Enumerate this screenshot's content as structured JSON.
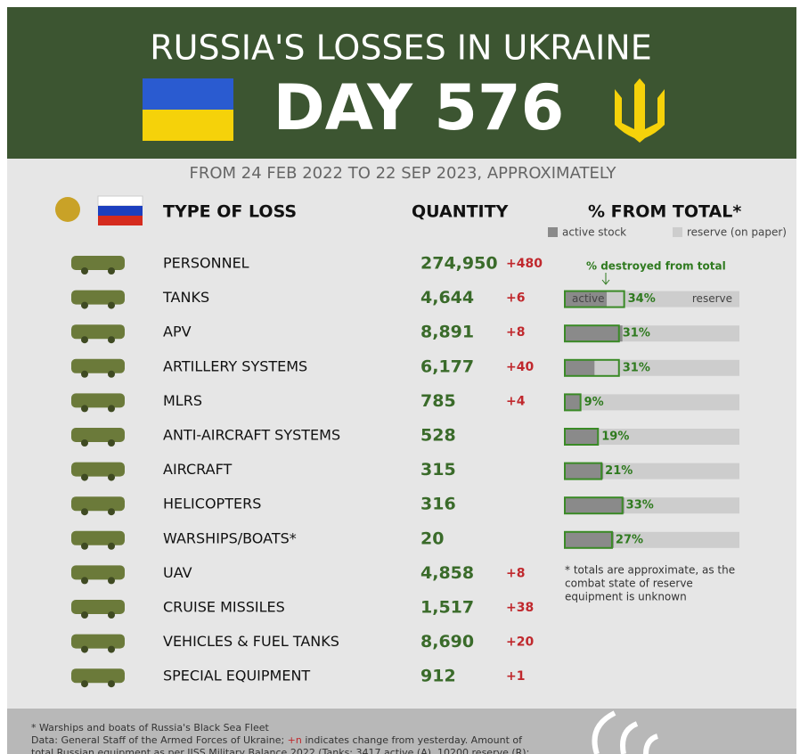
{
  "header": {
    "title": "RUSSIA'S LOSSES IN UKRAINE",
    "day": "DAY 576",
    "subtitle": "FROM 24 FEB 2022 TO 22 SEP 2023, APPROXIMATELY"
  },
  "columns": {
    "type": "TYPE OF LOSS",
    "quantity": "QUANTITY",
    "percent": "% FROM TOTAL*"
  },
  "legend": {
    "active_stock": "active stock",
    "reserve": "reserve (on paper)",
    "destroyed": "% destroyed from total",
    "bar_active": "active",
    "bar_reserve": "reserve"
  },
  "rows": [
    {
      "name": "PERSONNEL",
      "quantity": "274,950",
      "change": "+480"
    },
    {
      "name": "TANKS",
      "quantity": "4,644",
      "change": "+6",
      "percent": {
        "value": 34,
        "label": "34%"
      },
      "active_share": 24
    },
    {
      "name": "APV",
      "quantity": "8,891",
      "change": "+8",
      "percent": {
        "value": 31,
        "label": "31%"
      },
      "active_share": 33
    },
    {
      "name": "ARTILLERY SYSTEMS",
      "quantity": "6,177",
      "change": "+40",
      "percent": {
        "value": 31,
        "label": "31%"
      },
      "active_share": 17
    },
    {
      "name": "MLRS",
      "quantity": "785",
      "change": "+4",
      "percent": {
        "value": 9,
        "label": "9%"
      },
      "active_share": 9
    },
    {
      "name": "ANTI-AIRCRAFT SYSTEMS",
      "quantity": "528",
      "percent": {
        "value": 19,
        "label": "19%"
      },
      "active_share": 19
    },
    {
      "name": "AIRCRAFT",
      "quantity": "315",
      "percent": {
        "value": 21,
        "label": "21%"
      },
      "active_share": 22
    },
    {
      "name": "HELICOPTERS",
      "quantity": "316",
      "percent": {
        "value": 33,
        "label": "33%"
      },
      "active_share": 34
    },
    {
      "name": "WARSHIPS/BOATS*",
      "quantity": "20",
      "percent": {
        "value": 27,
        "label": "27%"
      },
      "active_share": 28
    },
    {
      "name": "UAV",
      "quantity": "4,858",
      "change": "+8"
    },
    {
      "name": "CRUISE MISSILES",
      "quantity": "1,517",
      "change": "+38"
    },
    {
      "name": "VEHICLES & FUEL TANKS",
      "quantity": "8,690",
      "change": "+20"
    },
    {
      "name": "SPECIAL EQUIPMENT",
      "quantity": "912",
      "change": "+1"
    }
  ],
  "note": [
    "* totals are approximate, as the",
    "combat state of reserve",
    "equipment is unknown"
  ],
  "footer": {
    "line1": "* Warships and boats of Russia's Black Sea Fleet",
    "line2a": "Data: General Staff of the Armed Forces of Ukraine; ",
    "line2b": "+n",
    "line2c": " indicates change from yesterday. Amount of",
    "line3": "total Russian equipment as per IISS Military Balance 2022 (Tanks: 3417 active (A), 10200 reserve (R);"
  }
}
